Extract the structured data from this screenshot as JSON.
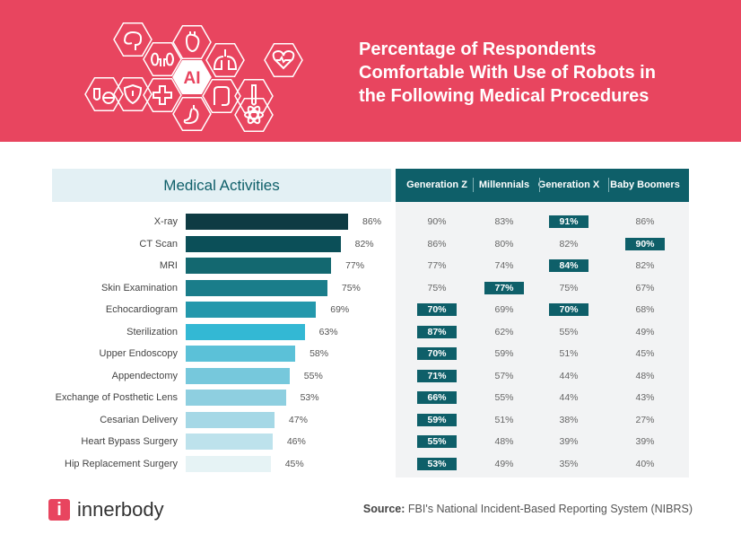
{
  "header": {
    "title_lines": [
      "Percentage of Respondents",
      "Comfortable With Use of Robots in",
      "the Following Medical Procedures"
    ],
    "background_color": "#E8455F",
    "icon_center_label": "AI",
    "icons": [
      "brain-icon",
      "heart-organ-icon",
      "kidneys-icon",
      "lungs-icon",
      "ai-icon",
      "heartbeat-icon",
      "shield-icon",
      "test-tube-icon",
      "pills-icon",
      "medical-cross-icon",
      "intestine-icon",
      "stomach-icon",
      "atom-icon"
    ]
  },
  "chart_data": {
    "type": "bar",
    "orientation": "horizontal",
    "title": "Medical Activities",
    "categories": [
      "X-ray",
      "CT Scan",
      "MRI",
      "Skin Examination",
      "Echocardiogram",
      "Sterilization",
      "Upper Endoscopy",
      "Appendectomy",
      "Exchange of Posthetic Lens",
      "Cesarian Delivery",
      "Heart Bypass Surgery",
      "Hip Replacement Surgery"
    ],
    "values": [
      86,
      82,
      77,
      75,
      69,
      63,
      58,
      55,
      53,
      47,
      46,
      45
    ],
    "value_labels": [
      "86%",
      "82%",
      "77%",
      "75%",
      "69%",
      "63%",
      "58%",
      "55%",
      "53%",
      "47%",
      "46%",
      "45%"
    ],
    "bar_colors": [
      "#0E3B43",
      "#0B4F58",
      "#136870",
      "#1A7D8A",
      "#2398AC",
      "#33B8D4",
      "#5BC1D8",
      "#76C8DC",
      "#8ECFE0",
      "#A5D8E6",
      "#BDE2EC",
      "#E6F3F5"
    ],
    "table": {
      "columns": [
        "Generation Z",
        "Millennials",
        "Generation X",
        "Baby Boomers"
      ],
      "rows": [
        [
          "90%",
          "83%",
          "91%",
          "86%"
        ],
        [
          "86%",
          "80%",
          "82%",
          "90%"
        ],
        [
          "77%",
          "74%",
          "84%",
          "82%"
        ],
        [
          "75%",
          "77%",
          "75%",
          "67%"
        ],
        [
          "70%",
          "69%",
          "70%",
          "68%"
        ],
        [
          "87%",
          "62%",
          "55%",
          "49%"
        ],
        [
          "70%",
          "59%",
          "51%",
          "45%"
        ],
        [
          "71%",
          "57%",
          "44%",
          "48%"
        ],
        [
          "66%",
          "55%",
          "44%",
          "43%"
        ],
        [
          "59%",
          "51%",
          "38%",
          "27%"
        ],
        [
          "55%",
          "48%",
          "39%",
          "39%"
        ],
        [
          "53%",
          "49%",
          "35%",
          "40%"
        ]
      ],
      "highlighted": [
        [
          0,
          2
        ],
        [
          1,
          3
        ],
        [
          2,
          2
        ],
        [
          3,
          1
        ],
        [
          4,
          0
        ],
        [
          4,
          2
        ],
        [
          5,
          0
        ],
        [
          6,
          0
        ],
        [
          7,
          0
        ],
        [
          8,
          0
        ],
        [
          9,
          0
        ],
        [
          10,
          0
        ],
        [
          11,
          0
        ]
      ],
      "highlight_color": "#0E5F69"
    }
  },
  "footer": {
    "logo_mark": "i",
    "logo_text": "innerbody",
    "source_label": "Source:",
    "source_text": " FBI's National Incident-Based Reporting System (NIBRS)"
  }
}
